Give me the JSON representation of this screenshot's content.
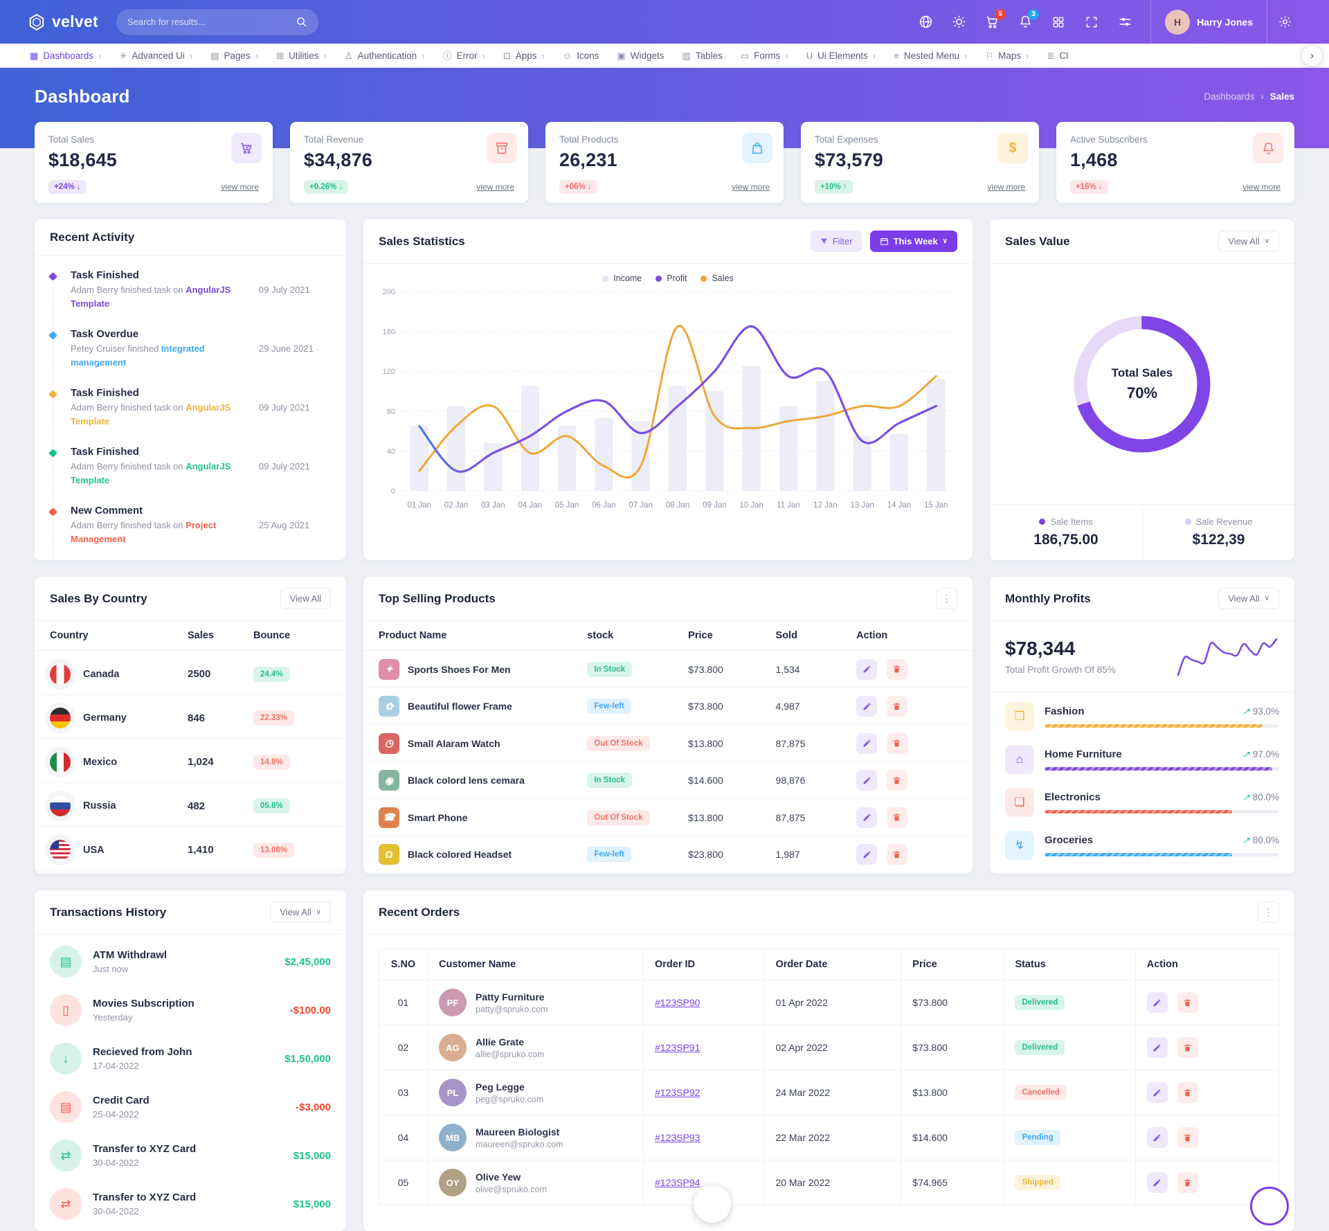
{
  "header": {
    "logo": "velvet",
    "search_placeholder": "Search for results...",
    "cart_badge": "5",
    "bell_badge": "3",
    "user_name": "Harry Jones",
    "user_initials": "H"
  },
  "nav": {
    "items": [
      {
        "label": "Dashboards",
        "icon": "dashboard-icon",
        "glyph": "▦",
        "chevron": true,
        "state": "active"
      },
      {
        "label": "Advanced Ui",
        "icon": "sparkle-icon",
        "glyph": "✳",
        "chevron": true
      },
      {
        "label": "Pages",
        "icon": "pages-icon",
        "glyph": "▤",
        "chevron": true
      },
      {
        "label": "Utilities",
        "icon": "utilities-icon",
        "glyph": "⊞",
        "chevron": true
      },
      {
        "label": "Authentication",
        "icon": "auth-user-icon",
        "glyph": "♙",
        "chevron": true
      },
      {
        "label": "Error",
        "icon": "info-circle-icon",
        "glyph": "ⓘ",
        "chevron": true
      },
      {
        "label": "Apps",
        "icon": "apps-icon",
        "glyph": "⊡",
        "chevron": true
      },
      {
        "label": "Icons",
        "icon": "smiley-icon",
        "glyph": "☺",
        "chevron": false
      },
      {
        "label": "Widgets",
        "icon": "widgets-icon",
        "glyph": "▣",
        "chevron": false
      },
      {
        "label": "Tables",
        "icon": "tables-icon",
        "glyph": "▥",
        "chevron": false
      },
      {
        "label": "Forms",
        "icon": "forms-icon",
        "glyph": "▭",
        "chevron": true
      },
      {
        "label": "Ui Elements",
        "icon": "ui-elements-icon",
        "glyph": "U",
        "chevron": true
      },
      {
        "label": "Nested Menu",
        "icon": "nested-menu-icon",
        "glyph": "≡",
        "chevron": true
      },
      {
        "label": "Maps",
        "icon": "maps-icon",
        "glyph": "⚐",
        "chevron": true
      },
      {
        "label": "Cl",
        "icon": "charts-icon",
        "glyph": "≣",
        "chevron": false
      }
    ]
  },
  "hero": {
    "title": "Dashboard",
    "breadcrumb_parent": "Dashboards",
    "breadcrumb_current": "Sales"
  },
  "kpis": [
    {
      "label": "Total Sales",
      "value": "$18,645",
      "change": "+24% ↓",
      "tone": "purple",
      "icon": "cart-icon"
    },
    {
      "label": "Total Revenue",
      "value": "$34,876",
      "change": "+0.26% ↓",
      "tone": "green",
      "icon": "archive-icon"
    },
    {
      "label": "Total Products",
      "value": "26,231",
      "change": "+06% ↓",
      "tone": "red",
      "icon": "bag-icon"
    },
    {
      "label": "Total Expenses",
      "value": "$73,579",
      "change": "+10% ↑",
      "tone": "green",
      "icon": "dollar-icon"
    },
    {
      "label": "Active Subscribers",
      "value": "1,468",
      "change": "+16% ↓",
      "tone": "red",
      "icon": "bell-icon"
    }
  ],
  "view_more_label": "view more",
  "recent_activity": {
    "title": "Recent Activity",
    "items": [
      {
        "title": "Task Finished",
        "text": "Adam Berry finished task on ",
        "link": "AngularJS Template",
        "date": "09 July 2021",
        "tone": "purple"
      },
      {
        "title": "Task Overdue",
        "text": "Petey Cruiser finished ",
        "link": "Integrated management",
        "date": "29 June 2021",
        "tone": "blue"
      },
      {
        "title": "Task Finished",
        "text": "Adam Berry finished task on ",
        "link": "AngularJS Template",
        "date": "09 July 2021",
        "tone": "orange"
      },
      {
        "title": "Task Finished",
        "text": "Adam Berry finished task on ",
        "link": "AngularJS Template",
        "date": "09 July 2021",
        "tone": "green"
      },
      {
        "title": "New Comment",
        "text": "Adam Berry finished task on ",
        "link": "Project Management",
        "date": "25 Aug 2021",
        "tone": "red"
      }
    ]
  },
  "sales_statistics": {
    "title": "Sales Statistics",
    "filter_label": "Filter",
    "range_label": "This Week",
    "legend": [
      "Income",
      "Profit",
      "Sales"
    ]
  },
  "sales_value": {
    "title": "Sales Value",
    "view_all": "View All",
    "center_label": "Total Sales",
    "center_value": "70%",
    "stats": [
      {
        "label": "Sale Items",
        "value": "186,75.00",
        "dot": "#7f45e6"
      },
      {
        "label": "Sale Revenue",
        "value": "$122,39",
        "dot": "#dcc9f6"
      }
    ]
  },
  "sales_by_country": {
    "title": "Sales By Country",
    "view_all": "View All",
    "columns": [
      "Country",
      "Sales",
      "Bounce"
    ],
    "rows": [
      {
        "country": "Canada",
        "flag": "canada",
        "sales": "2500",
        "bounce": "24.4%",
        "tone": "success"
      },
      {
        "country": "Germany",
        "flag": "germany",
        "sales": "846",
        "bounce": "22.33%",
        "tone": "danger"
      },
      {
        "country": "Mexico",
        "flag": "mexico",
        "sales": "1,024",
        "bounce": "14.8%",
        "tone": "danger"
      },
      {
        "country": "Russia",
        "flag": "russia",
        "sales": "482",
        "bounce": "05.8%",
        "tone": "success"
      },
      {
        "country": "USA",
        "flag": "usa",
        "sales": "1,410",
        "bounce": "13.08%",
        "tone": "danger"
      }
    ]
  },
  "top_selling": {
    "title": "Top Selling Products",
    "columns": [
      "Product Name",
      "stock",
      "Price",
      "Sold",
      "Action"
    ],
    "rows": [
      {
        "name": "Sports Shoes For Men",
        "thumb": "pink",
        "glyph": "✦",
        "stock": "In Stock",
        "stock_tone": "success",
        "price": "$73.800",
        "sold": "1,534"
      },
      {
        "name": "Beautiful flower Frame",
        "thumb": "blue",
        "glyph": "✿",
        "stock": "Few-left",
        "stock_tone": "info",
        "price": "$73.800",
        "sold": "4,987"
      },
      {
        "name": "Small Alaram Watch",
        "thumb": "red",
        "glyph": "◷",
        "stock": "Out Of Stock",
        "stock_tone": "danger",
        "price": "$13.800",
        "sold": "87,875"
      },
      {
        "name": "Black colord lens cemara",
        "thumb": "green",
        "glyph": "◉",
        "stock": "In Stock",
        "stock_tone": "success",
        "price": "$14.600",
        "sold": "98,876"
      },
      {
        "name": "Smart Phone",
        "thumb": "orange",
        "glyph": "☎",
        "stock": "Out Of Stock",
        "stock_tone": "danger",
        "price": "$13.800",
        "sold": "87,875"
      },
      {
        "name": "Black colored Headset",
        "thumb": "yellow",
        "glyph": "Ω",
        "stock": "Few-left",
        "stock_tone": "info",
        "price": "$23.800",
        "sold": "1,987"
      }
    ]
  },
  "monthly_profits": {
    "title": "Monthly Profits",
    "view_all": "View All",
    "total": "$78,344",
    "subtitle": "Total Profit Growth Of 85%",
    "rows": [
      {
        "name": "Fashion",
        "icon": "package-icon",
        "glyph": "❒",
        "tone": "orange",
        "pct": "93.0%",
        "value": 93
      },
      {
        "name": "Home Furniture",
        "icon": "home-icon",
        "glyph": "⌂",
        "tone": "purple",
        "pct": "97.0%",
        "value": 97
      },
      {
        "name": "Electronics",
        "icon": "tv-icon",
        "glyph": "❑",
        "tone": "red",
        "pct": "80.0%",
        "value": 80
      },
      {
        "name": "Groceries",
        "icon": "bolt-icon",
        "glyph": "↯",
        "tone": "blue",
        "pct": "80.0%",
        "value": 80
      }
    ]
  },
  "transactions": {
    "title": "Transactions History",
    "view_all": "View All",
    "rows": [
      {
        "title": "ATM Withdrawl",
        "sub": "Just now",
        "amount": "$2,45,000",
        "amount_tone": "g",
        "icon": "credit-card-icon",
        "glyph": "▤",
        "tone": "g"
      },
      {
        "title": "Movies Subscription",
        "sub": "Yesterday",
        "amount": "-$100.00",
        "amount_tone": "r",
        "icon": "mobile-icon",
        "glyph": "▯",
        "tone": "r"
      },
      {
        "title": "Recieved from John",
        "sub": "17-04-2022",
        "amount": "$1,50,000",
        "amount_tone": "g",
        "icon": "arrow-down-icon",
        "glyph": "↓",
        "tone": "g"
      },
      {
        "title": "Credit Card",
        "sub": "25-04-2022",
        "amount": "-$3,000",
        "amount_tone": "r",
        "icon": "credit-card-icon",
        "glyph": "▤",
        "tone": "r"
      },
      {
        "title": "Transfer to XYZ Card",
        "sub": "30-04-2022",
        "amount": "$15,000",
        "amount_tone": "g",
        "icon": "transfer-icon",
        "glyph": "⇄",
        "tone": "g"
      },
      {
        "title": "Transfer to XYZ Card",
        "sub": "30-04-2022",
        "amount": "$15,000",
        "amount_tone": "g",
        "icon": "transfer-icon",
        "glyph": "⇄",
        "tone": "r"
      }
    ]
  },
  "recent_orders": {
    "title": "Recent Orders",
    "columns": [
      "S.NO",
      "Customer Name",
      "Order ID",
      "Order Date",
      "Price",
      "Status",
      "Action"
    ],
    "rows": [
      {
        "sno": "01",
        "name": "Patty Furniture",
        "email": "patty@spruko.com",
        "initials": "PF",
        "av": "a1",
        "order_id": "#123SP90",
        "date": "01 Apr 2022",
        "price": "$73.800",
        "status": "Delivered",
        "status_tone": "success"
      },
      {
        "sno": "02",
        "name": "Allie Grate",
        "email": "allie@spruko.com",
        "initials": "AG",
        "av": "a2",
        "order_id": "#123SP91",
        "date": "02 Apr 2022",
        "price": "$73.800",
        "status": "Delivered",
        "status_tone": "success"
      },
      {
        "sno": "03",
        "name": "Peg Legge",
        "email": "peg@spruko.com",
        "initials": "PL",
        "av": "a3",
        "order_id": "#123SP92",
        "date": "24 Mar 2022",
        "price": "$13.800",
        "status": "Cancelled",
        "status_tone": "danger"
      },
      {
        "sno": "04",
        "name": "Maureen Biologist",
        "email": "maureen@spruko.com",
        "initials": "MB",
        "av": "a4",
        "order_id": "#123SP93",
        "date": "22 Mar 2022",
        "price": "$14.600",
        "status": "Pending",
        "status_tone": "info"
      },
      {
        "sno": "05",
        "name": "Olive Yew",
        "email": "olive@spruko.com",
        "initials": "OY",
        "av": "a5",
        "order_id": "#123SP94",
        "date": "20 Mar 2022",
        "price": "$74.965",
        "status": "Shipped",
        "status_tone": "warning"
      }
    ]
  },
  "chart_data": {
    "sales_statistics": {
      "type": "bar",
      "x": [
        "01 Jan",
        "02 Jan",
        "03 Jan",
        "04 Jan",
        "05 Jan",
        "06 Jan",
        "07 Jan",
        "08 Jan",
        "09 Jan",
        "10 Jan",
        "11 Jan",
        "12 Jan",
        "13 Jan",
        "14 Jan",
        "15 Jan"
      ],
      "ylim": [
        0,
        200
      ],
      "yticks": [
        0,
        40,
        80,
        120,
        160,
        200
      ],
      "grid": true,
      "legend_position": "top",
      "series": [
        {
          "name": "Income",
          "type": "bar",
          "color": "#ecedf6",
          "values": [
            65,
            85,
            48,
            105,
            65,
            73,
            70,
            105,
            100,
            125,
            85,
            110,
            55,
            57,
            112
          ]
        },
        {
          "name": "Profit",
          "type": "line",
          "color": "#7b4fe0",
          "gradient_start": "#4f7ce8",
          "values": [
            65,
            20,
            38,
            55,
            80,
            90,
            58,
            85,
            120,
            165,
            115,
            120,
            50,
            68,
            85
          ]
        },
        {
          "name": "Sales",
          "type": "line",
          "color": "#f0a63a",
          "values": [
            20,
            65,
            85,
            38,
            55,
            25,
            25,
            165,
            75,
            63,
            70,
            75,
            85,
            85,
            115
          ]
        }
      ],
      "legend_colors": [
        "#e2e5f0",
        "#7b4fe0",
        "#f0a63a"
      ]
    },
    "sales_value_donut": {
      "type": "pie",
      "labels": [
        "Sale Items",
        "Sale Revenue"
      ],
      "values": [
        70,
        30
      ],
      "colors": [
        "#7f45e6",
        "#e7daf9"
      ],
      "center_label": "Total Sales",
      "center_value": "70%"
    },
    "monthly_profit_trend": {
      "type": "line",
      "color": "#7c4fe0",
      "values": [
        5,
        30,
        27,
        24,
        23,
        50,
        44,
        37,
        35,
        33,
        49,
        40,
        34,
        50,
        45,
        56
      ]
    }
  }
}
